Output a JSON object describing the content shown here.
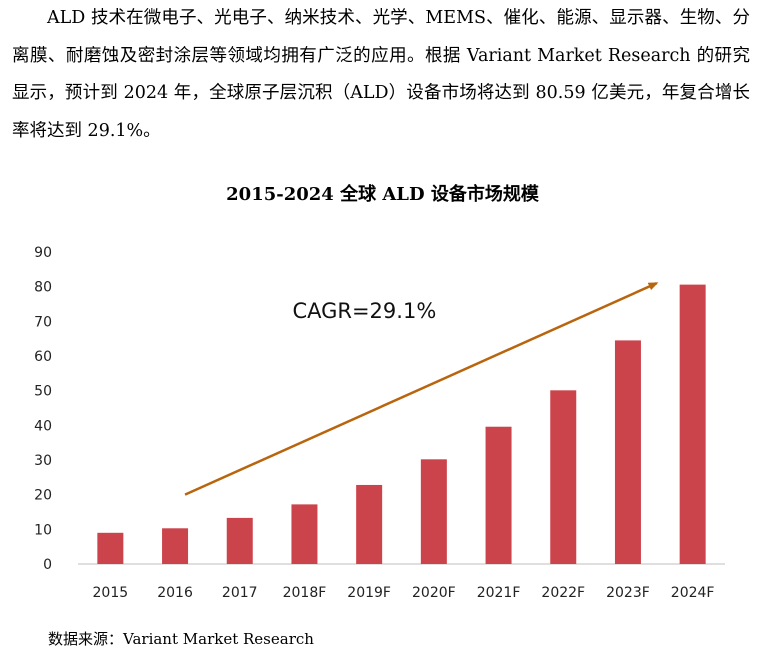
{
  "intro": {
    "text": "ALD 技术在微电子、光电子、纳米技术、光学、MEMS、催化、能源、显示器、生物、分离膜、耐磨蚀及密封涂层等领域均拥有广泛的应用。根据 Variant Market Research 的研究显示，预计到 2024 年，全球原子层沉积（ALD）设备市场将达到 80.59 亿美元，年复合增长率将达到 29.1%。"
  },
  "source": {
    "text": "数据来源：Variant Market Research"
  },
  "colors": {
    "bar": "#cc444b",
    "arrow": "#b8650e",
    "axis": "#bfbfbf"
  },
  "chart_data": {
    "type": "bar",
    "title": "2015-2024 全球 ALD 设备市场规模",
    "categories": [
      "2015",
      "2016",
      "2017",
      "2018F",
      "2019F",
      "2020F",
      "2021F",
      "2022F",
      "2023F",
      "2024F"
    ],
    "values": [
      9,
      10.3,
      13.3,
      17.2,
      22.8,
      30.2,
      39.6,
      50.1,
      64.5,
      80.59
    ],
    "ylim": [
      0,
      90
    ],
    "yticks": [
      0,
      10,
      20,
      30,
      40,
      50,
      60,
      70,
      80,
      90
    ],
    "grid": false,
    "annotation": {
      "text": "CAGR=29.1%",
      "arrow_from": {
        "category": "2016",
        "value": 20
      },
      "arrow_to": {
        "category": "2024F",
        "value": 81
      }
    }
  }
}
